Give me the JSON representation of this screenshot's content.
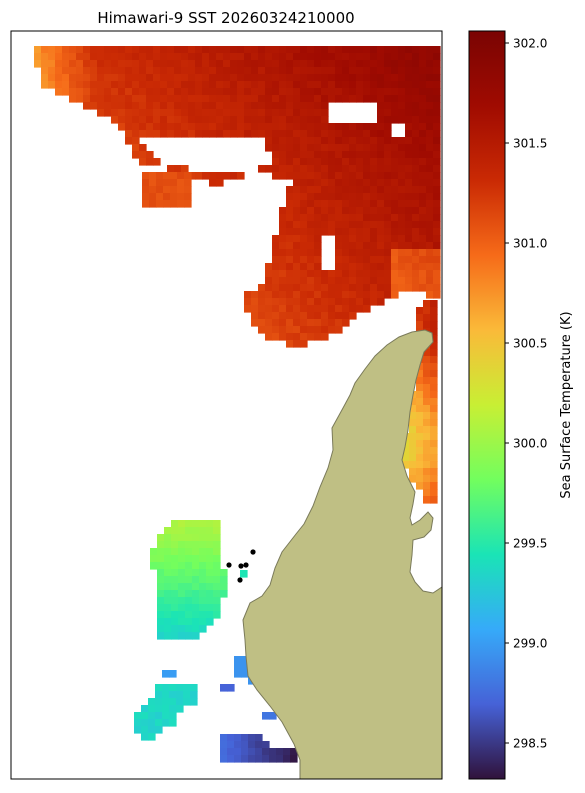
{
  "chart_data": {
    "type": "heatmap",
    "title": "Himawari-9 SST 20260324210000",
    "colorbar": {
      "label": "Sea Surface Temperature (K)",
      "range": [
        298.32,
        302.06
      ],
      "ticks": [
        "298.5",
        "299.0",
        "299.5",
        "300.0",
        "300.5",
        "301.0",
        "301.5",
        "302.0"
      ],
      "tick_values": [
        298.5,
        299.0,
        299.5,
        300.0,
        300.5,
        301.0,
        301.5,
        302.0
      ],
      "colormap": "turbo"
    },
    "grid": false,
    "land_color": "#bfbf84",
    "coastline_color": "#7a7a5a",
    "point_markers": 5,
    "regions": [
      {
        "area": "northern open water",
        "sst_min": 300.8,
        "sst_max": 302.06
      },
      {
        "area": "eastern strip",
        "sst_min": 300.5,
        "sst_max": 301.6
      },
      {
        "area": "southwest patch",
        "sst_min": 299.2,
        "sst_max": 300.1
      },
      {
        "area": "southern patches",
        "sst_min": 298.3,
        "sst_max": 299.2
      }
    ]
  }
}
